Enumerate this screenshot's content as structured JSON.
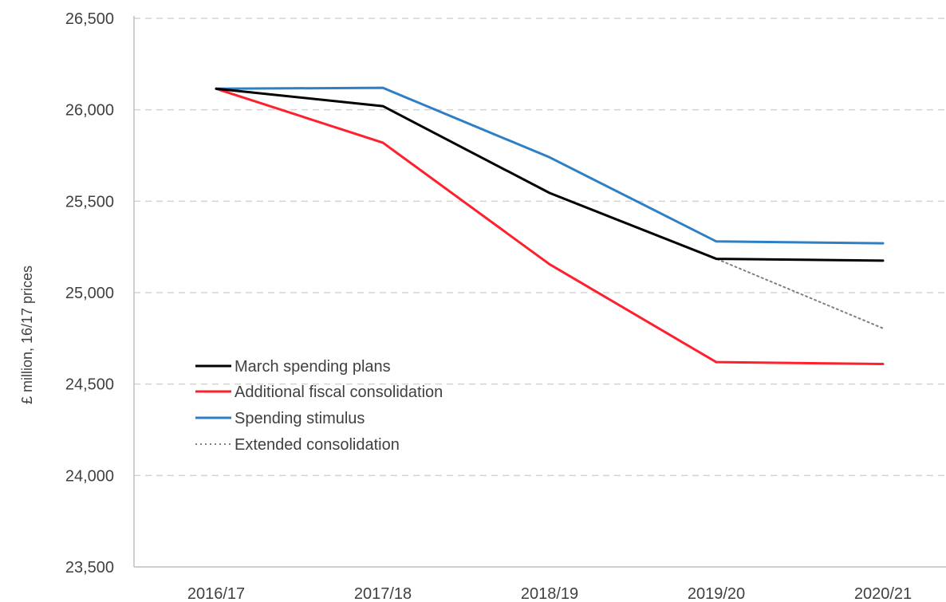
{
  "chart_data": {
    "type": "line",
    "title": "",
    "xlabel": "",
    "ylabel": "£ million,  16/17 prices",
    "categories": [
      "2016/17",
      "2017/18",
      "2018/19",
      "2019/20",
      "2020/21"
    ],
    "ylim": [
      23500,
      26500
    ],
    "yticks": [
      23500,
      24000,
      24500,
      25000,
      25500,
      26000,
      26500
    ],
    "ytick_labels": [
      "23,500",
      "24,000",
      "24,500",
      "25,000",
      "25,500",
      "26,000",
      "26,500"
    ],
    "grid": true,
    "legend_position": "left-middle",
    "series": [
      {
        "name": "March spending plans",
        "color": "#000000",
        "style": "solid",
        "values": [
          26115,
          26020,
          25545,
          25185,
          25175
        ]
      },
      {
        "name": "Additional fiscal consolidation",
        "color": "#ff1f2d",
        "style": "solid",
        "values": [
          26115,
          25820,
          25155,
          24620,
          24610
        ]
      },
      {
        "name": "Spending stimulus",
        "color": "#2e7fc4",
        "style": "solid",
        "values": [
          26115,
          26120,
          25740,
          25280,
          25270
        ]
      },
      {
        "name": "Extended consolidation",
        "color": "#7f7f7f",
        "style": "dotted",
        "values": [
          26115,
          26020,
          25545,
          25185,
          24805
        ]
      }
    ]
  }
}
